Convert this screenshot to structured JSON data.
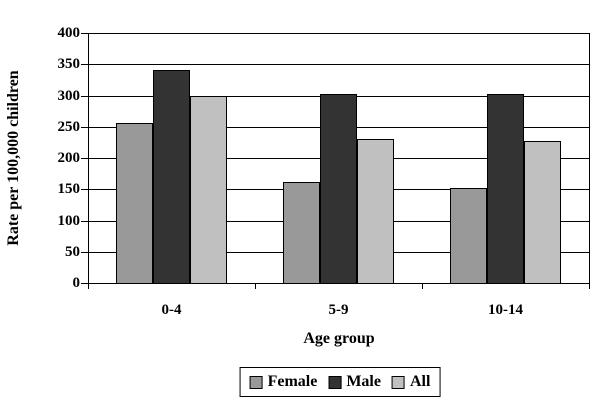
{
  "chart_data": {
    "type": "bar",
    "title": "",
    "categories": [
      "0-4",
      "5-9",
      "10-14"
    ],
    "series": [
      {
        "name": "Female",
        "color": "#999999",
        "values": [
          256,
          161,
          152
        ]
      },
      {
        "name": "Male",
        "color": "#333333",
        "values": [
          341,
          303,
          303
        ]
      },
      {
        "name": "All",
        "color": "#C0C0C0",
        "values": [
          299,
          231,
          228
        ]
      }
    ],
    "xlabel": "Age group",
    "ylabel": "Rate per 100,000 children",
    "ylim": [
      0,
      400
    ],
    "ytick_step": 50,
    "yticks": [
      0,
      50,
      100,
      150,
      200,
      250,
      300,
      350,
      400
    ],
    "grid": true,
    "legend_position": "bottom",
    "axis_color": "#000000",
    "background_color": "#FFFFFF"
  }
}
